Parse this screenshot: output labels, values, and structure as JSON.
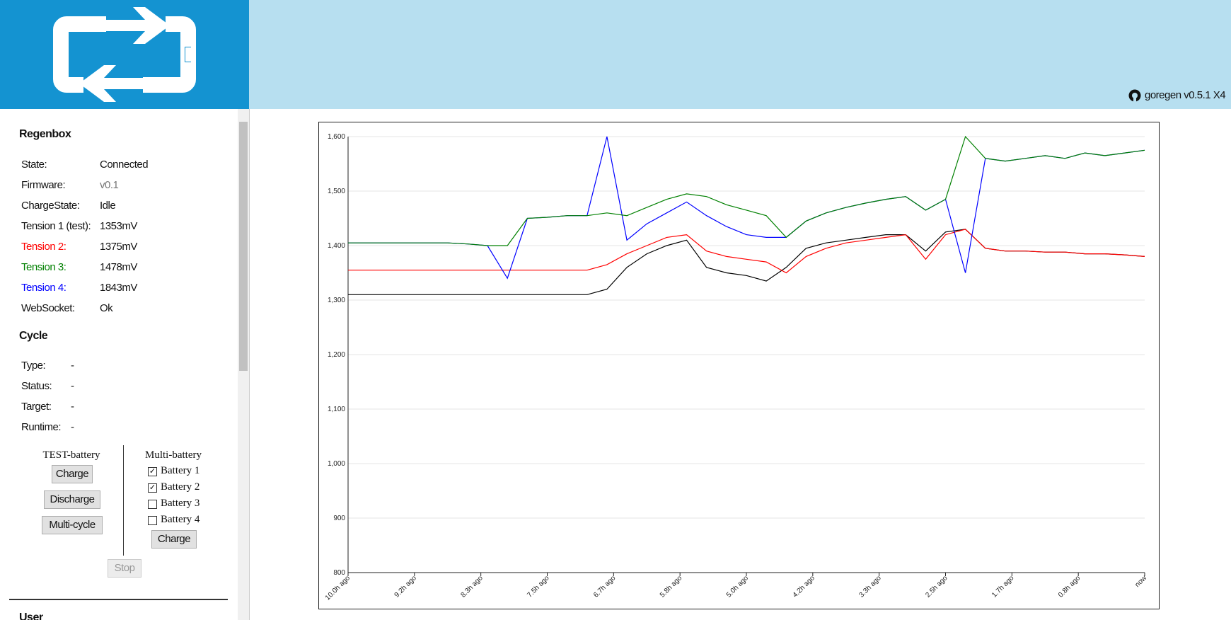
{
  "header": {
    "version": "goregen v0.5.1 X4"
  },
  "sidebar": {
    "regenbox": {
      "title": "Regenbox",
      "rows": [
        {
          "label": "State:",
          "value": "Connected"
        },
        {
          "label": "Firmware:",
          "value": "v0.1",
          "color": "#777777"
        },
        {
          "label": "ChargeState:",
          "value": "Idle"
        },
        {
          "label": "Tension 1 (test):",
          "value": "1353mV"
        },
        {
          "label": "Tension 2:",
          "value": "1375mV",
          "color": "#ff0000"
        },
        {
          "label": "Tension 3:",
          "value": "1478mV",
          "color": "#008000"
        },
        {
          "label": "Tension 4:",
          "value": "1843mV",
          "color": "#0000ff"
        },
        {
          "label": "WebSocket:",
          "value": "Ok"
        }
      ]
    },
    "cycle": {
      "title": "Cycle",
      "rows": [
        {
          "label": "Type:",
          "value": "-"
        },
        {
          "label": "Status:",
          "value": "-"
        },
        {
          "label": "Target:",
          "value": "-"
        },
        {
          "label": "Runtime:",
          "value": "-"
        }
      ]
    },
    "test_battery": {
      "title": "TEST-battery",
      "buttons": [
        "Charge",
        "Discharge",
        "Multi-cycle"
      ]
    },
    "multi_battery": {
      "title": "Multi-battery",
      "batteries": [
        {
          "label": "Battery 1",
          "checked": true
        },
        {
          "label": "Battery 2",
          "checked": true
        },
        {
          "label": "Battery 3",
          "checked": false
        },
        {
          "label": "Battery 4",
          "checked": false
        }
      ],
      "button": "Charge"
    },
    "stop": "Stop",
    "user": "User"
  },
  "chart_data": {
    "type": "line",
    "x": [
      -10,
      -9.75,
      -9.5,
      -9.25,
      -9,
      -8.75,
      -8.5,
      -8.25,
      -8,
      -7.75,
      -7.5,
      -7.25,
      -7,
      -6.75,
      -6.5,
      -6.25,
      -6,
      -5.75,
      -5.5,
      -5.25,
      -5,
      -4.75,
      -4.5,
      -4.25,
      -4,
      -3.75,
      -3.5,
      -3.25,
      -3,
      -2.75,
      -2.5,
      -2.25,
      -2,
      -1.75,
      -1.5,
      -1.25,
      -1,
      -0.75,
      -0.5,
      -0.25,
      0
    ],
    "series": [
      {
        "color": "#000000",
        "values": [
          1310,
          1310,
          1310,
          1310,
          1310,
          1310,
          1310,
          1310,
          1310,
          1310,
          1310,
          1310,
          1310,
          1320,
          1360,
          1385,
          1400,
          1410,
          1360,
          1350,
          1345,
          1335,
          1360,
          1395,
          1405,
          1410,
          1415,
          1420,
          1420,
          1390,
          1425,
          1430,
          1395,
          1390,
          1390,
          1388,
          1388,
          1385,
          1385,
          1383,
          1380
        ]
      },
      {
        "color": "#ff0000",
        "values": [
          1355,
          1355,
          1355,
          1355,
          1355,
          1355,
          1355,
          1355,
          1355,
          1355,
          1355,
          1355,
          1355,
          1365,
          1385,
          1400,
          1415,
          1420,
          1390,
          1380,
          1375,
          1370,
          1350,
          1380,
          1395,
          1405,
          1410,
          1415,
          1420,
          1375,
          1420,
          1430,
          1395,
          1390,
          1390,
          1388,
          1388,
          1385,
          1385,
          1383,
          1380
        ]
      },
      {
        "color": "#0000ff",
        "values": [
          1405,
          1405,
          1405,
          1405,
          1405,
          1405,
          1403,
          1400,
          1340,
          1450,
          1452,
          1455,
          1455,
          1600,
          1410,
          1440,
          1460,
          1480,
          1455,
          1435,
          1420,
          1415,
          1415,
          1445,
          1460,
          1470,
          1478,
          1485,
          1490,
          1465,
          1485,
          1350,
          1560,
          1555,
          1560,
          1565,
          1560,
          1570,
          1565,
          1570,
          1575
        ]
      },
      {
        "color": "#008000",
        "values": [
          1405,
          1405,
          1405,
          1405,
          1405,
          1405,
          1403,
          1400,
          1400,
          1450,
          1452,
          1455,
          1455,
          1460,
          1455,
          1470,
          1485,
          1495,
          1490,
          1475,
          1465,
          1455,
          1415,
          1445,
          1460,
          1470,
          1478,
          1485,
          1490,
          1465,
          1485,
          1600,
          1560,
          1555,
          1560,
          1565,
          1560,
          1570,
          1565,
          1570,
          1575
        ]
      }
    ],
    "xlim": [
      -10,
      0
    ],
    "xticks": [
      {
        "value": -10,
        "label": "10.0h ago"
      },
      {
        "value": -9.1667,
        "label": "9.2h ago"
      },
      {
        "value": -8.3333,
        "label": "8.3h ago"
      },
      {
        "value": -7.5,
        "label": "7.5h ago"
      },
      {
        "value": -6.6667,
        "label": "6.7h ago"
      },
      {
        "value": -5.8333,
        "label": "5.8h ago"
      },
      {
        "value": -5,
        "label": "5.0h ago"
      },
      {
        "value": -4.1667,
        "label": "4.2h ago"
      },
      {
        "value": -3.3333,
        "label": "3.3h ago"
      },
      {
        "value": -2.5,
        "label": "2.5h ago"
      },
      {
        "value": -1.6667,
        "label": "1.7h ago"
      },
      {
        "value": -0.8333,
        "label": "0.8h ago"
      },
      {
        "value": 0,
        "label": "now"
      }
    ],
    "ylim": [
      800,
      1600
    ],
    "yticks": [
      800,
      900,
      {
        "value": 1000,
        "label": "1,000"
      },
      {
        "value": 1100,
        "label": "1,100"
      },
      {
        "value": 1200,
        "label": "1,200"
      },
      {
        "value": 1300,
        "label": "1,300"
      },
      {
        "value": 1400,
        "label": "1,400"
      },
      {
        "value": 1500,
        "label": "1,500"
      },
      {
        "value": 1600,
        "label": "1,600"
      }
    ],
    "grid": true
  }
}
